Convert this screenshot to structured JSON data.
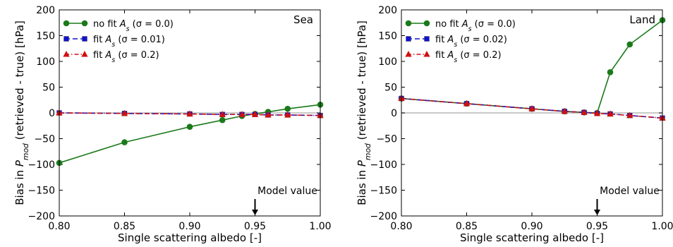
{
  "chart_data": [
    {
      "type": "line",
      "panel_label": "Sea",
      "xlabel": "Single scattering albedo [-]",
      "ylabel": "Bias in P_mod (retrieved - true) [hPa]",
      "xlim": [
        0.8,
        1.0
      ],
      "ylim": [
        -200,
        200
      ],
      "xticks": [
        "0.80",
        "0.85",
        "0.90",
        "0.95",
        "1.00"
      ],
      "yticks": [
        "200",
        "150",
        "100",
        "50",
        "0",
        "−50",
        "−100",
        "−150",
        "−200"
      ],
      "x": [
        0.8,
        0.85,
        0.9,
        0.925,
        0.94,
        0.95,
        0.96,
        0.975,
        1.0
      ],
      "zero_line": true,
      "legend_position": "upper-left",
      "annotation": {
        "text": "Model value",
        "x": 0.95
      },
      "series": [
        {
          "name": "no fit A_s (σ = 0.0)",
          "color": "#1a7a1a",
          "marker": "circle",
          "linestyle": "solid",
          "values": [
            -97,
            -57,
            -27,
            -14,
            -6,
            -2,
            2,
            8,
            16
          ]
        },
        {
          "name": "fit A_s (σ = 0.01)",
          "color": "#1010d0",
          "marker": "square",
          "linestyle": "dashed",
          "values": [
            0,
            -1,
            -2,
            -3,
            -3,
            -3,
            -4,
            -4,
            -5
          ]
        },
        {
          "name": "fit A_s (σ = 0.2)",
          "color": "#d01010",
          "marker": "triangle",
          "linestyle": "dashdot",
          "values": [
            0,
            -1,
            -2,
            -3,
            -3,
            -3,
            -4,
            -4,
            -5
          ]
        }
      ]
    },
    {
      "type": "line",
      "panel_label": "Land",
      "xlabel": "Single scattering albedo [-]",
      "ylabel": "Bias in P_mod (retrieved - true) [hPa]",
      "xlim": [
        0.8,
        1.0
      ],
      "ylim": [
        -200,
        200
      ],
      "xticks": [
        "0.80",
        "0.85",
        "0.90",
        "0.95",
        "1.00"
      ],
      "yticks": [
        "200",
        "150",
        "100",
        "50",
        "0",
        "−50",
        "−100",
        "−150",
        "−200"
      ],
      "x": [
        0.8,
        0.85,
        0.9,
        0.925,
        0.94,
        0.95,
        0.96,
        0.975,
        1.0
      ],
      "zero_line": true,
      "legend_position": "upper-left",
      "annotation": {
        "text": "Model value",
        "x": 0.95
      },
      "series": [
        {
          "name": "no fit A_s (σ = 0.0)",
          "color": "#1a7a1a",
          "marker": "circle",
          "linestyle": "solid",
          "values": [
            28,
            18,
            8,
            3,
            1,
            0,
            79,
            133,
            180
          ]
        },
        {
          "name": "fit A_s (σ = 0.02)",
          "color": "#1010d0",
          "marker": "square",
          "linestyle": "dashed",
          "values": [
            28,
            18,
            8,
            3,
            1,
            -1,
            -2,
            -5,
            -10
          ]
        },
        {
          "name": "fit A_s (σ = 0.2)",
          "color": "#d01010",
          "marker": "triangle",
          "linestyle": "dashdot",
          "values": [
            28,
            18,
            8,
            3,
            1,
            -1,
            -2,
            -5,
            -10
          ]
        }
      ]
    }
  ]
}
